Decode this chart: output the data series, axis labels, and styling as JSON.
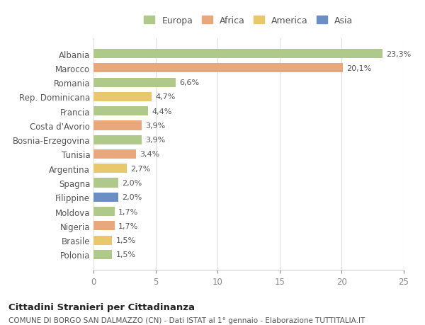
{
  "countries": [
    "Albania",
    "Marocco",
    "Romania",
    "Rep. Dominicana",
    "Francia",
    "Costa d'Avorio",
    "Bosnia-Erzegovina",
    "Tunisia",
    "Argentina",
    "Spagna",
    "Filippine",
    "Moldova",
    "Nigeria",
    "Brasile",
    "Polonia"
  ],
  "values": [
    23.3,
    20.1,
    6.6,
    4.7,
    4.4,
    3.9,
    3.9,
    3.4,
    2.7,
    2.0,
    2.0,
    1.7,
    1.7,
    1.5,
    1.5
  ],
  "labels": [
    "23,3%",
    "20,1%",
    "6,6%",
    "4,7%",
    "4,4%",
    "3,9%",
    "3,9%",
    "3,4%",
    "2,7%",
    "2,0%",
    "2,0%",
    "1,7%",
    "1,7%",
    "1,5%",
    "1,5%"
  ],
  "colors": [
    "#aec98a",
    "#e8a87c",
    "#aec98a",
    "#e8c86a",
    "#aec98a",
    "#e8a87c",
    "#aec98a",
    "#e8a87c",
    "#e8c86a",
    "#aec98a",
    "#6b8fc4",
    "#aec98a",
    "#e8a87c",
    "#e8c86a",
    "#aec98a"
  ],
  "categories": [
    "Europa",
    "Africa",
    "America",
    "Asia"
  ],
  "legend_colors": [
    "#aec98a",
    "#e8a87c",
    "#e8c86a",
    "#6b8fc4"
  ],
  "title": "Cittadini Stranieri per Cittadinanza",
  "subtitle": "COMUNE DI BORGO SAN DALMAZZO (CN) - Dati ISTAT al 1° gennaio - Elaborazione TUTTITALIA.IT",
  "xlim": [
    0,
    25
  ],
  "xticks": [
    0,
    5,
    10,
    15,
    20,
    25
  ],
  "background_color": "#ffffff",
  "grid_color": "#dddddd"
}
